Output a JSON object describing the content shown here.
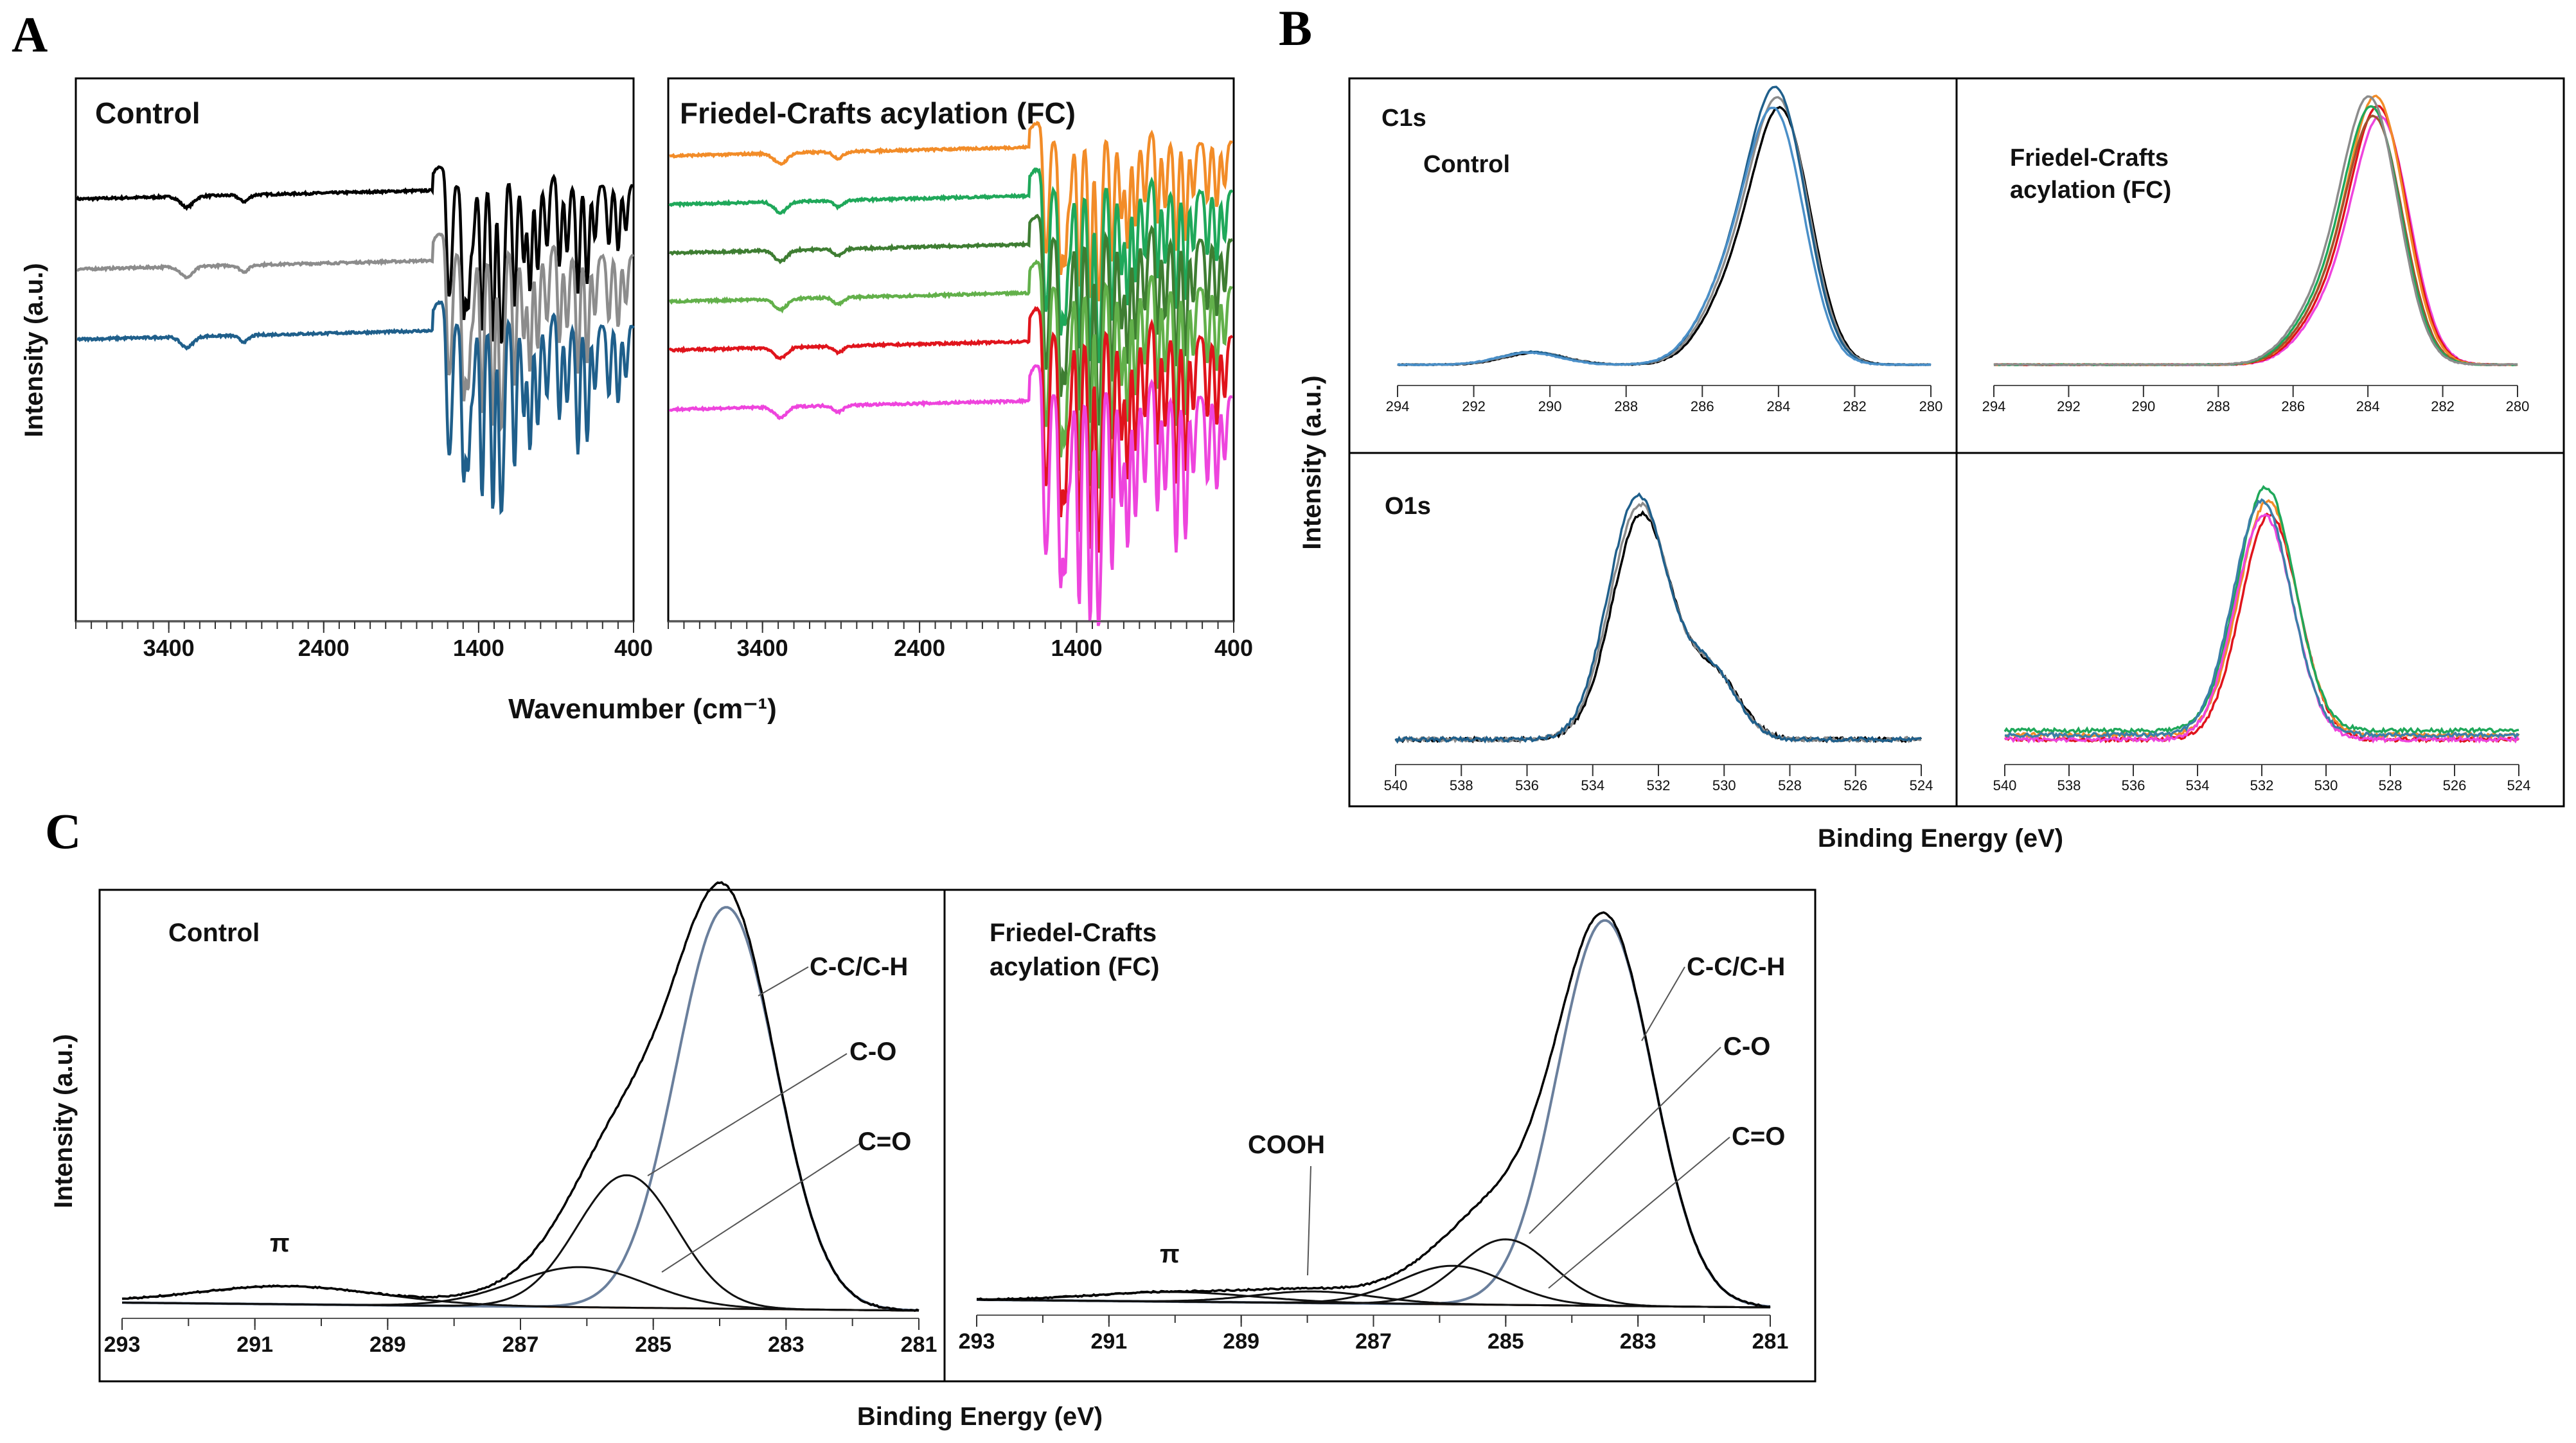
{
  "panel_letters": [
    "A",
    "B",
    "C"
  ],
  "colors": {
    "black": "#000000",
    "gray": "#8c8c8c",
    "blue": "#1f5f8b",
    "lightblue": "#4a8fc8",
    "orange": "#f28c28",
    "green": "#1fa85a",
    "darkgreen": "#3e7d32",
    "lightgreen": "#62b04a",
    "red": "#e0141c",
    "magenta": "#ee44dd",
    "brown": "#a0522d",
    "teal": "#3b7fa8"
  },
  "chart_data": [
    {
      "id": "A",
      "type": "line",
      "title": "Control",
      "xlabel": "",
      "ylabel": "Intensity (a.u.)",
      "xlim": [
        4000,
        400
      ],
      "xticks": [
        3400,
        2400,
        1400,
        400
      ],
      "series": [
        {
          "color": "#000000",
          "offset": 0.78
        },
        {
          "color": "#8c8c8c",
          "offset": 0.65
        },
        {
          "color": "#1f5f8b",
          "offset": 0.52
        }
      ]
    },
    {
      "id": "A2",
      "type": "line",
      "title": "Friedel-Crafts acylation (FC)",
      "xlabel": "",
      "ylabel": "",
      "xlim": [
        4000,
        400
      ],
      "xticks": [
        3400,
        2400,
        1400,
        400
      ],
      "series": [
        {
          "color": "#f28c28",
          "offset": 0.86
        },
        {
          "color": "#1fa85a",
          "offset": 0.77
        },
        {
          "color": "#3e7d32",
          "offset": 0.68
        },
        {
          "color": "#62b04a",
          "offset": 0.59
        },
        {
          "color": "#e0141c",
          "offset": 0.5
        },
        {
          "color": "#ee44dd",
          "offset": 0.39
        }
      ]
    },
    {
      "id": "B_C1s_control",
      "type": "line",
      "region": "C1s",
      "title": "Control",
      "xlim": [
        294,
        280
      ],
      "xticks": [
        294,
        292,
        290,
        288,
        286,
        284,
        282,
        280
      ],
      "peaks": [
        {
          "center": 284.0,
          "height": 1.0
        },
        {
          "center": 285.3,
          "height": 0.28
        },
        {
          "center": 290.5,
          "height": 0.05
        }
      ],
      "series": [
        {
          "color": "#000000"
        },
        {
          "color": "#8c8c8c"
        },
        {
          "color": "#1f5f8b"
        },
        {
          "color": "#4a8fc8"
        }
      ]
    },
    {
      "id": "B_C1s_fc",
      "type": "line",
      "region": "C1s",
      "title": "Friedel-Crafts acylation (FC)",
      "xlim": [
        294,
        280
      ],
      "xticks": [
        294,
        292,
        290,
        288,
        286,
        284,
        282,
        280
      ],
      "peaks": [
        {
          "center": 283.8,
          "height": 1.0
        },
        {
          "center": 285.2,
          "height": 0.2
        }
      ],
      "series": [
        {
          "color": "#ee44dd"
        },
        {
          "color": "#e0141c"
        },
        {
          "color": "#f28c28"
        },
        {
          "color": "#a0522d"
        },
        {
          "color": "#1fa85a"
        },
        {
          "color": "#8c8c8c"
        }
      ]
    },
    {
      "id": "B_O1s_control",
      "type": "line",
      "region": "O1s",
      "title": "",
      "xlim": [
        540,
        524
      ],
      "xticks": [
        540,
        538,
        536,
        534,
        532,
        530,
        528,
        526,
        524
      ],
      "peaks": [
        {
          "center": 532.6,
          "height": 1.0
        },
        {
          "center": 530.4,
          "height": 0.28
        }
      ],
      "series": [
        {
          "color": "#000000"
        },
        {
          "color": "#8c8c8c"
        },
        {
          "color": "#1f5f8b"
        }
      ]
    },
    {
      "id": "B_O1s_fc",
      "type": "line",
      "region": "O1s",
      "title": "",
      "xlim": [
        540,
        524
      ],
      "xticks": [
        540,
        538,
        536,
        534,
        532,
        530,
        528,
        526,
        524
      ],
      "peaks": [
        {
          "center": 531.9,
          "height": 1.0
        }
      ],
      "series": [
        {
          "color": "#e0141c"
        },
        {
          "color": "#f28c28"
        },
        {
          "color": "#1fa85a"
        },
        {
          "color": "#ee44dd"
        },
        {
          "color": "#3b7fa8"
        }
      ]
    },
    {
      "id": "C_control",
      "type": "line",
      "title": "Control",
      "xlim": [
        293,
        281
      ],
      "xticks": [
        293,
        291,
        289,
        287,
        285,
        283,
        281
      ],
      "components": [
        {
          "name": "C-C/C-H",
          "center": 283.9,
          "height": 1.0,
          "width": 0.75
        },
        {
          "name": "C-O",
          "center": 285.4,
          "height": 0.33,
          "width": 0.75
        },
        {
          "name": "C=O",
          "center": 286.1,
          "height": 0.1,
          "width": 1.0
        },
        {
          "name": "π",
          "center": 290.5,
          "height": 0.045,
          "width": 1.4
        }
      ]
    },
    {
      "id": "C_fc",
      "type": "line",
      "title": "Friedel-Crafts acylation (FC)",
      "xlim": [
        293,
        281
      ],
      "xticks": [
        293,
        291,
        289,
        287,
        285,
        283,
        281
      ],
      "components": [
        {
          "name": "C-C/C-H",
          "center": 283.5,
          "height": 1.0,
          "width": 0.72
        },
        {
          "name": "C-O",
          "center": 285.0,
          "height": 0.17,
          "width": 0.7
        },
        {
          "name": "C=O",
          "center": 285.8,
          "height": 0.1,
          "width": 0.8
        },
        {
          "name": "COOH",
          "center": 287.9,
          "height": 0.03,
          "width": 0.9
        },
        {
          "name": "π",
          "center": 290.0,
          "height": 0.025,
          "width": 1.2
        }
      ]
    }
  ],
  "labels": {
    "A_ylabel": "Intensity (a.u.)",
    "A_xlabel": "Wavenumber (cm⁻¹)",
    "A_control": "Control",
    "A_fc": "Friedel-Crafts acylation (FC)",
    "B_ylabel": "Intensity (a.u.)",
    "B_xlabel": "Binding Energy (eV)",
    "B_c1s": "C1s",
    "B_o1s": "O1s",
    "B_control": "Control",
    "B_fc_line1": "Friedel-Crafts",
    "B_fc_line2": "acylation (FC)",
    "C_ylabel": "Intensity (a.u.)",
    "C_xlabel": "Binding Energy (eV)",
    "C_control": "Control",
    "C_fc_line1": "Friedel-Crafts",
    "C_fc_line2": "acylation (FC)",
    "C_cc": "C-C/C-H",
    "C_co": "C-O",
    "C_cdo": "C=O",
    "C_pi": "π",
    "C_cooh": "COOH"
  }
}
